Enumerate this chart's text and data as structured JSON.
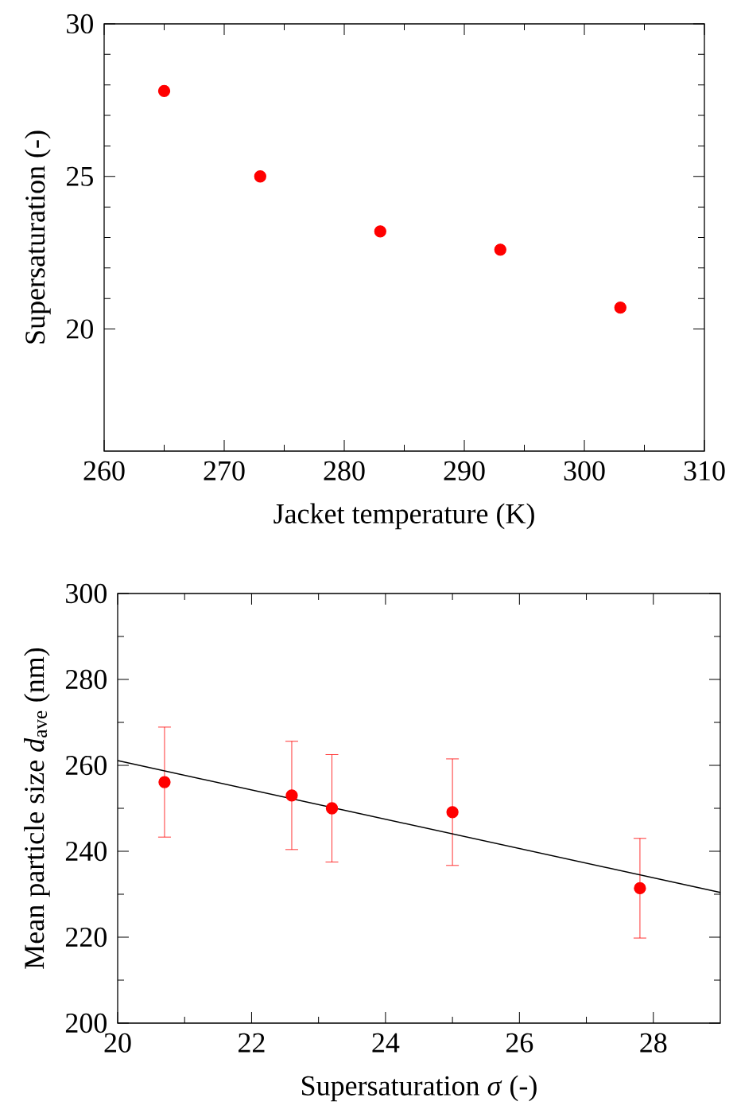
{
  "chart_data": [
    {
      "type": "scatter",
      "xlabel": "Jacket temperature (K)",
      "ylabel": "Supersaturation (-)",
      "xlim": [
        260,
        310
      ],
      "ylim": [
        16,
        30
      ],
      "xticks": [
        260,
        270,
        280,
        290,
        300,
        310
      ],
      "yticks": [
        20,
        25,
        30
      ],
      "series": [
        {
          "marker": "circle",
          "color": "#ff0000",
          "x": [
            265,
            273,
            283,
            293,
            303
          ],
          "values": [
            27.8,
            25.0,
            23.2,
            22.6,
            20.7
          ]
        }
      ]
    },
    {
      "type": "scatter",
      "xlabel": "Supersaturation  *σ* (-)",
      "ylabel": "Mean particle size *d*$_{ave}$ (nm)",
      "xlim": [
        20,
        29
      ],
      "ylim": [
        200,
        300
      ],
      "xticks": [
        20,
        22,
        24,
        26,
        28
      ],
      "yticks": [
        200,
        220,
        240,
        260,
        280,
        300
      ],
      "series": [
        {
          "marker": "circle",
          "color": "#ff0000",
          "x": [
            20.7,
            22.6,
            23.2,
            25.0,
            27.8
          ],
          "values": [
            256.1,
            253.0,
            250.0,
            249.1,
            231.4
          ],
          "errors": [
            12.8,
            12.6,
            12.5,
            12.4,
            11.6
          ]
        },
        {
          "type": "line",
          "marker": "none",
          "color": "#000000",
          "x": [
            20,
            29
          ],
          "values": [
            261.1,
            230.4
          ]
        }
      ]
    }
  ]
}
